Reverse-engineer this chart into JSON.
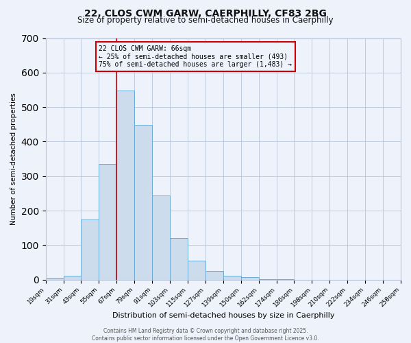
{
  "title1": "22, CLOS CWM GARW, CAERPHILLY, CF83 2BG",
  "title2": "Size of property relative to semi-detached houses in Caerphilly",
  "xlabel": "Distribution of semi-detached houses by size in Caerphilly",
  "ylabel": "Number of semi-detached properties",
  "bar_values": [
    5,
    12,
    175,
    335,
    548,
    448,
    243,
    120,
    55,
    25,
    12,
    8,
    2,
    1,
    0,
    0,
    0,
    0,
    0,
    0
  ],
  "bin_edges": [
    0,
    1,
    2,
    3,
    4,
    5,
    6,
    7,
    8,
    9,
    10,
    11,
    12,
    13,
    14,
    15,
    16,
    17,
    18,
    19,
    20
  ],
  "bin_labels": [
    "19sqm",
    "31sqm",
    "43sqm",
    "55sqm",
    "67sqm",
    "79sqm",
    "91sqm",
    "103sqm",
    "115sqm",
    "127sqm",
    "139sqm",
    "150sqm",
    "162sqm",
    "174sqm",
    "186sqm",
    "198sqm",
    "210sqm",
    "222sqm",
    "234sqm",
    "246sqm",
    "258sqm"
  ],
  "bar_color": "#ccdcec",
  "bar_edge_color": "#6aaad4",
  "vline_x": 4,
  "vline_color": "#cc0000",
  "annotation_title": "22 CLOS CWM GARW: 66sqm",
  "annotation_line1": "← 25% of semi-detached houses are smaller (493)",
  "annotation_line2": "75% of semi-detached houses are larger (1,483) →",
  "annotation_box_color": "#cc0000",
  "background_color": "#eef2fb",
  "grid_color": "#b8c4d8",
  "footer1": "Contains HM Land Registry data © Crown copyright and database right 2025.",
  "footer2": "Contains public sector information licensed under the Open Government Licence v3.0.",
  "ylim": [
    0,
    700
  ],
  "title1_fontsize": 10,
  "title2_fontsize": 8.5
}
